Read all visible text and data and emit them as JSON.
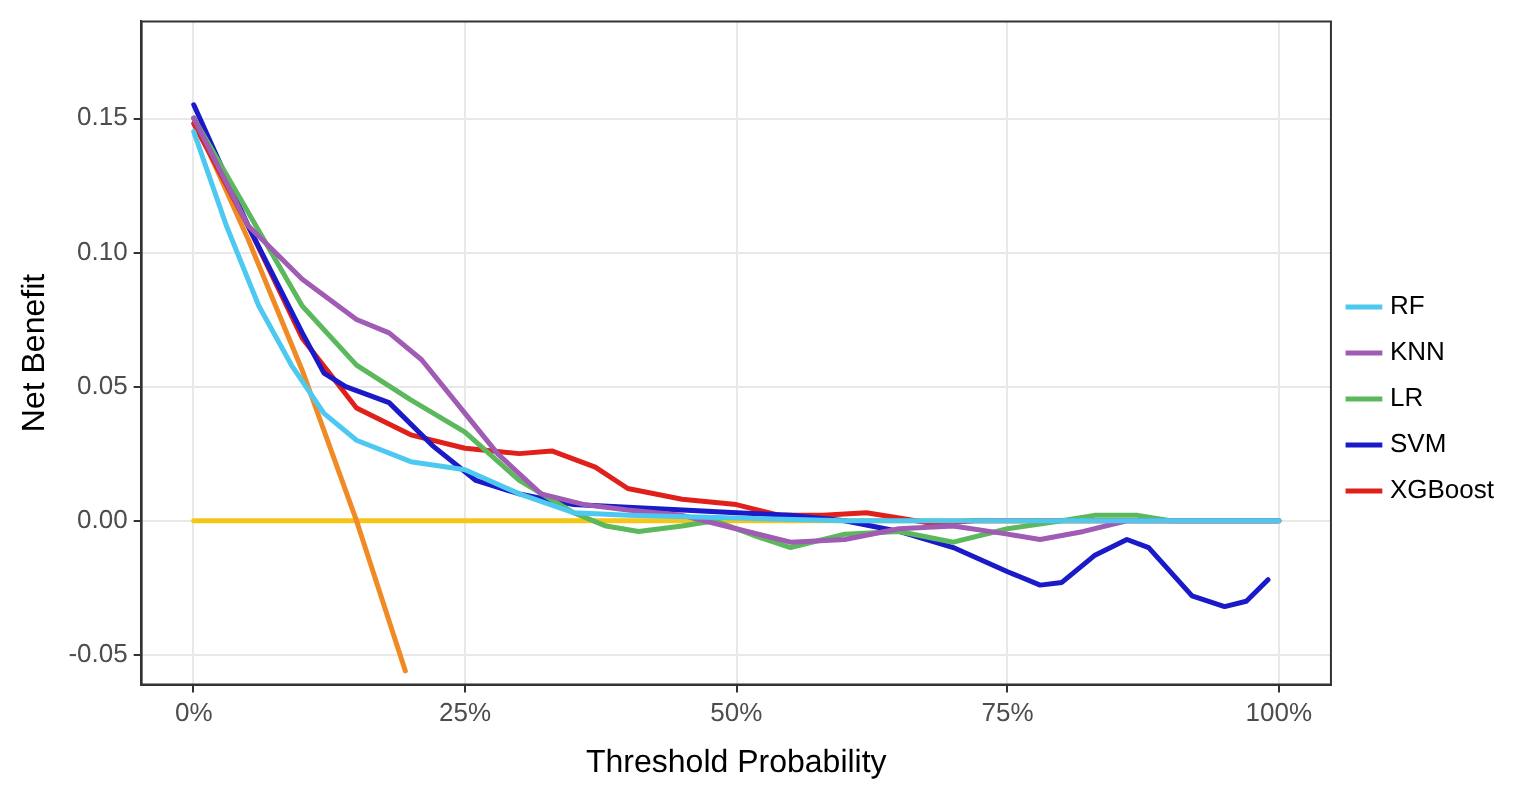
{
  "chart_data": {
    "type": "line",
    "xlabel": "Threshold Probability",
    "ylabel": "Net Benefit",
    "xlim": [
      -4.8,
      104.8
    ],
    "ylim": [
      -0.061,
      0.186
    ],
    "xticks": [
      {
        "value": 0,
        "label": "0%"
      },
      {
        "value": 25,
        "label": "25%"
      },
      {
        "value": 50,
        "label": "50%"
      },
      {
        "value": 75,
        "label": "75%"
      },
      {
        "value": 100,
        "label": "100%"
      }
    ],
    "yticks": [
      -0.05,
      {
        "value": 0,
        "label": "0.00"
      },
      0.05,
      {
        "value": 0.1,
        "label": "0.10"
      },
      0.15
    ],
    "grid": true,
    "legend": "right",
    "marker": "none",
    "line_style": "solid",
    "series": [
      {
        "name": "RF",
        "color": "#4dc8f0",
        "x": [
          0,
          3,
          6,
          9,
          12,
          15,
          20,
          25,
          30,
          35,
          40,
          50,
          60,
          100
        ],
        "values": [
          0.145,
          0.11,
          0.08,
          0.058,
          0.04,
          0.03,
          0.022,
          0.019,
          0.01,
          0.003,
          0.002,
          0.001,
          0,
          0
        ]
      },
      {
        "name": "KNN",
        "color": "#a05bb4",
        "x": [
          0,
          5,
          10,
          15,
          18,
          21,
          25,
          28,
          32,
          36,
          40,
          45,
          50,
          55,
          60,
          65,
          70,
          75,
          78,
          82,
          86,
          90,
          100
        ],
        "values": [
          0.15,
          0.11,
          0.09,
          0.075,
          0.07,
          0.06,
          0.04,
          0.025,
          0.01,
          0.006,
          0.004,
          0.002,
          -0.003,
          -0.008,
          -0.007,
          -0.003,
          -0.002,
          -0.005,
          -0.007,
          -0.004,
          0,
          0,
          0
        ]
      },
      {
        "name": "LR",
        "color": "#5cb85c",
        "x": [
          0,
          5,
          10,
          15,
          20,
          25,
          30,
          35,
          38,
          41,
          45,
          48,
          52,
          55,
          60,
          65,
          70,
          75,
          80,
          83,
          87,
          90,
          100
        ],
        "values": [
          0.15,
          0.115,
          0.08,
          0.058,
          0.045,
          0.033,
          0.015,
          0.003,
          -0.002,
          -0.004,
          -0.002,
          0,
          -0.006,
          -0.01,
          -0.005,
          -0.004,
          -0.008,
          -0.003,
          0,
          0.002,
          0.002,
          0,
          0
        ]
      },
      {
        "name": "SVM",
        "color": "#1a1ac8",
        "x": [
          0,
          5,
          10,
          12,
          14,
          18,
          22,
          26,
          30,
          35,
          40,
          50,
          55,
          60,
          65,
          70,
          75,
          78,
          80,
          83,
          86,
          88,
          92,
          95,
          97,
          99
        ],
        "values": [
          0.155,
          0.11,
          0.07,
          0.055,
          0.05,
          0.044,
          0.028,
          0.015,
          0.01,
          0.006,
          0.005,
          0.003,
          0.002,
          0,
          -0.004,
          -0.01,
          -0.019,
          -0.024,
          -0.023,
          -0.013,
          -0.007,
          -0.01,
          -0.028,
          -0.032,
          -0.03,
          -0.022
        ]
      },
      {
        "name": "XGBoost",
        "color": "#e0201b",
        "x": [
          0,
          5,
          10,
          15,
          20,
          25,
          30,
          33,
          37,
          40,
          45,
          50,
          54,
          58,
          62,
          65,
          68,
          72,
          100
        ],
        "values": [
          0.148,
          0.11,
          0.068,
          0.042,
          0.032,
          0.027,
          0.025,
          0.026,
          0.02,
          0.012,
          0.008,
          0.006,
          0.002,
          0.002,
          0.003,
          0.001,
          -0.001,
          0,
          0
        ]
      },
      {
        "color": "#f08a24",
        "x": [
          0,
          5,
          10,
          15,
          19.5
        ],
        "values": [
          0.15,
          0.105,
          0.056,
          0,
          -0.056
        ]
      },
      {
        "color": "#f5c518",
        "x": [
          0,
          100
        ],
        "values": [
          0,
          0
        ]
      }
    ]
  }
}
